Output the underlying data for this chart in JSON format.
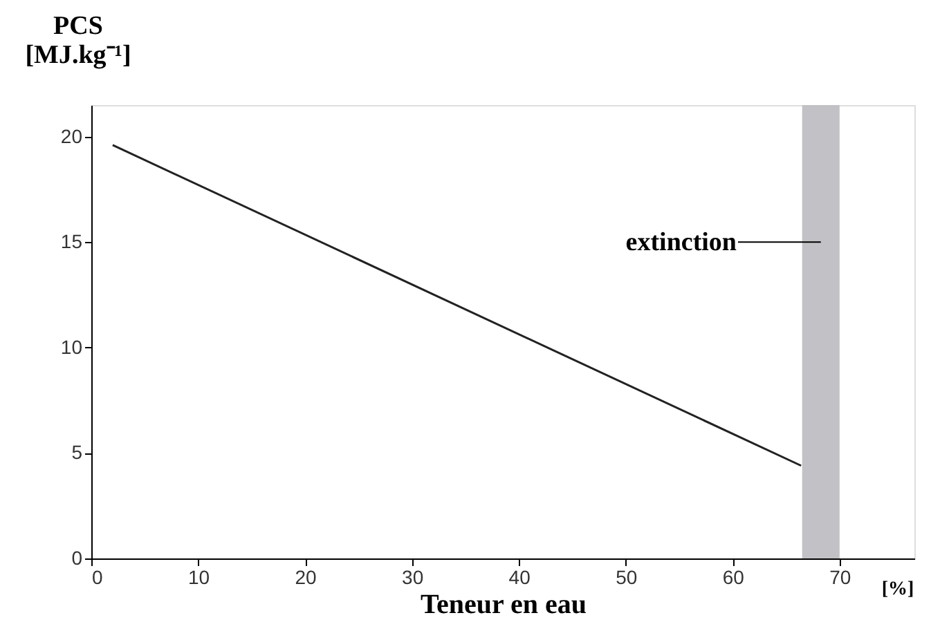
{
  "chart_data": {
    "type": "line",
    "xlabel": "Teneur en eau",
    "ylabel": "PCS [MJ.kg⁻¹]",
    "x": [
      2,
      66.4
    ],
    "series": [
      {
        "color": "#222222",
        "values": [
          19.6,
          4.4
        ]
      }
    ],
    "xlim": [
      0,
      77
    ],
    "ylim": [
      0,
      21.5
    ],
    "xticks": [
      0,
      10,
      20,
      30,
      40,
      50,
      60,
      70
    ],
    "yticks": [
      0,
      5,
      10,
      15,
      20
    ],
    "bands": [
      {
        "axis": "x",
        "from": 66.5,
        "to": 70,
        "label": "extinction",
        "color": "#c2c2c6"
      }
    ],
    "annotations": [
      "[%]"
    ],
    "grid": false
  }
}
